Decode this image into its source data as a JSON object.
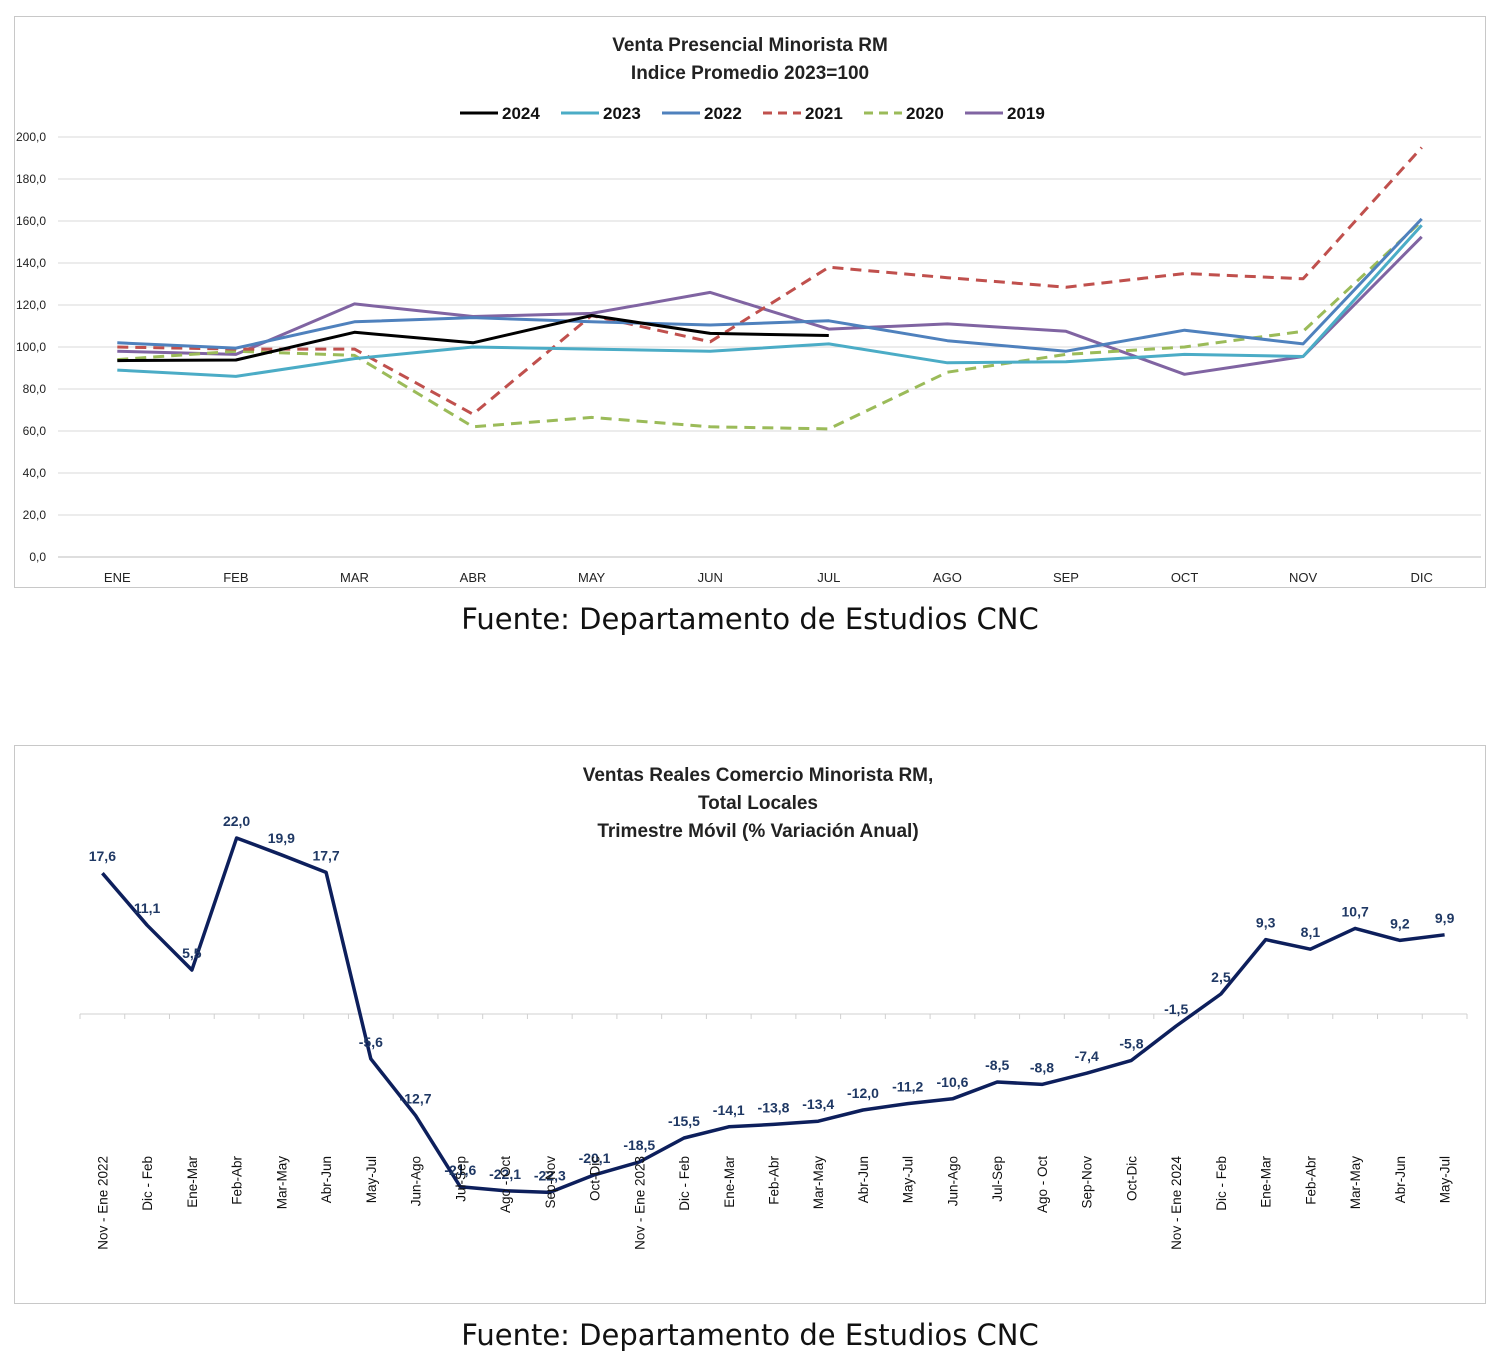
{
  "chart_data": [
    {
      "type": "line",
      "title": "Venta Presencial Minorista RM",
      "subtitle": "Indice Promedio 2023=100",
      "categories": [
        "ENE",
        "FEB",
        "MAR",
        "ABR",
        "MAY",
        "JUN",
        "JUL",
        "AGO",
        "SEP",
        "OCT",
        "NOV",
        "DIC"
      ],
      "ylim": [
        0,
        200
      ],
      "yticks": [
        "0,0",
        "20,0",
        "40,0",
        "60,0",
        "80,0",
        "100,0",
        "120,0",
        "140,0",
        "160,0",
        "180,0",
        "200,0"
      ],
      "grid": true,
      "legend_position": "top",
      "series": [
        {
          "name": "2024",
          "color": "#000000",
          "dash": "solid",
          "values": [
            93.5,
            93.8,
            107,
            102,
            115,
            106.5,
            105.5,
            null,
            null,
            null,
            null,
            null
          ]
        },
        {
          "name": "2023",
          "color": "#4bacc6",
          "dash": "solid",
          "values": [
            89,
            86,
            94.5,
            100,
            99,
            98,
            101.5,
            92.5,
            93,
            96.5,
            95.5,
            158
          ]
        },
        {
          "name": "2022",
          "color": "#4f81bd",
          "dash": "solid",
          "values": [
            102,
            99.5,
            112,
            114,
            112,
            110.5,
            112.5,
            103,
            98,
            108,
            101.5,
            161
          ]
        },
        {
          "name": "2021",
          "color": "#c0504d",
          "dash": "dashed",
          "values": [
            100,
            99,
            99,
            68,
            115,
            102.5,
            138,
            133,
            128.5,
            135,
            132.5,
            195
          ]
        },
        {
          "name": "2020",
          "color": "#9bbb59",
          "dash": "dashed",
          "values": [
            94,
            98,
            96,
            62,
            66.5,
            62,
            61,
            88,
            96.5,
            100,
            107.5,
            160
          ]
        },
        {
          "name": "2019",
          "color": "#8064a2",
          "dash": "solid",
          "values": [
            98,
            96.5,
            120.5,
            114.5,
            116,
            126,
            108.5,
            111,
            107.5,
            87,
            95.5,
            152.5
          ]
        }
      ]
    },
    {
      "type": "line",
      "title": "Ventas Reales Comercio Minorista RM,",
      "subtitle": "Total Locales",
      "subtitle2": "Trimestre Móvil (% Variación Anual)",
      "color": "#0d1f5c",
      "categories": [
        "Nov - Ene 2022",
        "Dic - Feb",
        "Ene-Mar",
        "Feb-Abr",
        "Mar-May",
        "Abr-Jun",
        "May-Jul",
        "Jun-Ago",
        "Jul-Sep",
        "Ago - Oct",
        "Sep-Nov",
        "Oct-Dic",
        "Nov - Ene 2023",
        "Dic - Feb",
        "Ene-Mar",
        "Feb-Abr",
        "Mar-May",
        "Abr-Jun",
        "May-Jul",
        "Jun-Ago",
        "Jul-Sep",
        "Ago - Oct",
        "Sep-Nov",
        "Oct-Dic",
        "Nov - Ene 2024",
        "Dic - Feb",
        "Ene-Mar",
        "Feb-Abr",
        "Mar-May",
        "Abr-Jun",
        "May-Jul"
      ],
      "values": [
        17.6,
        11.1,
        5.5,
        22.0,
        19.9,
        17.7,
        -5.6,
        -12.7,
        -21.6,
        -22.1,
        -22.3,
        -20.1,
        -18.5,
        -15.5,
        -14.1,
        -13.8,
        -13.4,
        -12.0,
        -11.2,
        -10.6,
        -8.5,
        -8.8,
        -7.4,
        -5.8,
        -1.5,
        2.5,
        9.3,
        8.1,
        10.7,
        9.2,
        9.9
      ],
      "labels": [
        "17,6",
        "11,1",
        "5,5",
        "22,0",
        "19,9",
        "17,7",
        "-5,6",
        "-12,7",
        "-21,6",
        "-22,1",
        "-22,3",
        "-20,1",
        "-18,5",
        "-15,5",
        "-14,1",
        "-13,8",
        "-13,4",
        "-12,0",
        "-11,2",
        "-10,6",
        "-8,5",
        "-8,8",
        "-7,4",
        "-5,8",
        "-1,5",
        "2,5",
        "9,3",
        "8,1",
        "10,7",
        "9,2",
        "9,9"
      ]
    }
  ],
  "source1": "Fuente: Departamento de Estudios CNC",
  "source2": "Fuente: Departamento de Estudios CNC"
}
